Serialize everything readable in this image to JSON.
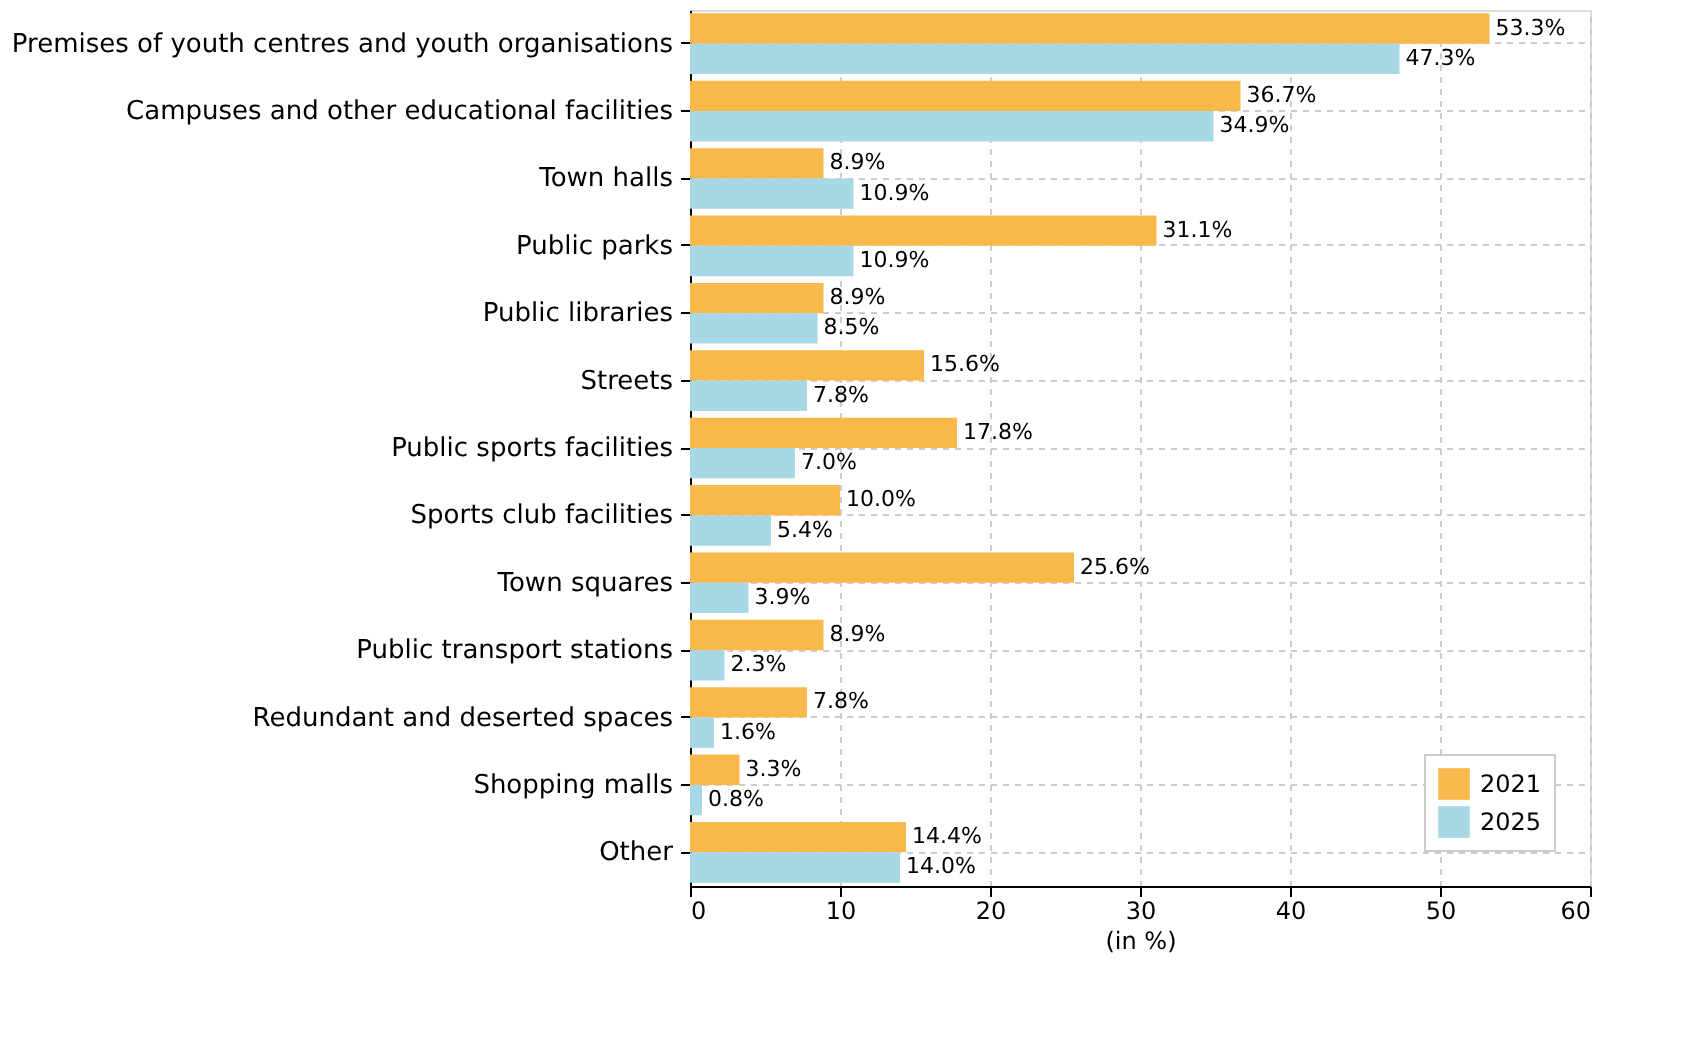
{
  "chart_data": {
    "type": "bar",
    "orientation": "horizontal",
    "xlabel": "(in %)",
    "categories": [
      "Premises of youth centres and youth organisations",
      "Campuses and other educational facilities",
      "Town halls",
      "Public parks",
      "Public libraries",
      "Streets",
      "Public sports facilities",
      "Sports club facilities",
      "Town squares",
      "Public transport stations",
      "Redundant and deserted spaces",
      "Shopping malls",
      "Other"
    ],
    "series": [
      {
        "name": "2021",
        "color": "#f9b84a",
        "values": [
          53.3,
          36.7,
          8.9,
          31.1,
          8.9,
          15.6,
          17.8,
          10.0,
          25.6,
          8.9,
          7.8,
          3.3,
          14.4
        ],
        "value_labels": [
          "53.3%",
          "36.7%",
          "8.9%",
          "31.1%",
          "8.9%",
          "15.6%",
          "17.8%",
          "10.0%",
          "25.6%",
          "8.9%",
          "7.8%",
          "3.3%",
          "14.4%"
        ]
      },
      {
        "name": "2025",
        "color": "#a8d7e6",
        "values": [
          47.3,
          34.9,
          10.9,
          10.9,
          8.5,
          7.8,
          7.0,
          5.4,
          3.9,
          2.3,
          1.6,
          0.8,
          14.0
        ],
        "value_labels": [
          "47.3%",
          "34.9%",
          "10.9%",
          "10.9%",
          "8.5%",
          "7.8%",
          "7.0%",
          "5.4%",
          "3.9%",
          "2.3%",
          "1.6%",
          "0.8%",
          "14.0%"
        ]
      }
    ],
    "xlim": [
      0,
      60
    ],
    "xticks": [
      0,
      10,
      20,
      30,
      40,
      50,
      60
    ],
    "grid": true,
    "legend": "bottom right"
  }
}
